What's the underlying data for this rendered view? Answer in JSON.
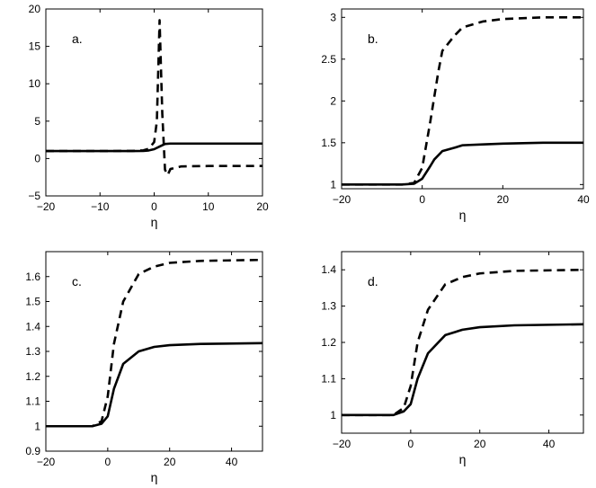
{
  "chart_data": [
    {
      "type": "line",
      "panel_label": "a.",
      "xlabel": "η",
      "xlim": [
        -20,
        20
      ],
      "ylim": [
        -5,
        20
      ],
      "xticks": [
        -20,
        -10,
        0,
        10,
        20
      ],
      "xtick_labels": [
        "−20",
        "−10",
        "0",
        "10",
        "20"
      ],
      "yticks": [
        -5,
        0,
        5,
        10,
        15,
        20
      ],
      "ytick_labels": [
        "−5",
        "0",
        "5",
        "10",
        "15",
        "20"
      ],
      "grid": false,
      "series": [
        {
          "style": "solid",
          "x": [
            -20,
            -10,
            -4,
            -2,
            -1,
            0,
            1,
            2,
            3,
            5,
            10,
            20
          ],
          "y": [
            1,
            1,
            1,
            1.02,
            1.08,
            1.25,
            1.6,
            1.95,
            2,
            2,
            2,
            2
          ]
        },
        {
          "style": "dashed",
          "x": [
            -20,
            -10,
            -4,
            -2,
            -1,
            0,
            0.5,
            1,
            1.5,
            2,
            2.5,
            3,
            5,
            10,
            20
          ],
          "y": [
            1,
            1,
            1.02,
            1.1,
            1.3,
            2.2,
            5,
            18.5,
            6,
            -1.5,
            -2.2,
            -1.4,
            -1.05,
            -1,
            -1
          ]
        }
      ]
    },
    {
      "type": "line",
      "panel_label": "b.",
      "xlabel": "η",
      "xlim": [
        -20,
        40
      ],
      "ylim": [
        0.95,
        3.1
      ],
      "xticks": [
        -20,
        0,
        20,
        40
      ],
      "xtick_labels": [
        "−20",
        "0",
        "20",
        "40"
      ],
      "yticks": [
        1,
        1.5,
        2,
        2.5,
        3
      ],
      "ytick_labels": [
        "1",
        "1.5",
        "2",
        "2.5",
        "3"
      ],
      "grid": false,
      "series": [
        {
          "style": "solid",
          "x": [
            -20,
            -5,
            -2,
            0,
            2,
            3,
            5,
            8,
            10,
            15,
            20,
            30,
            40
          ],
          "y": [
            1,
            1,
            1.01,
            1.07,
            1.22,
            1.3,
            1.4,
            1.44,
            1.47,
            1.48,
            1.49,
            1.5,
            1.5
          ]
        },
        {
          "style": "dashed",
          "x": [
            -20,
            -5,
            -2,
            0,
            2,
            4,
            5,
            8,
            10,
            15,
            20,
            30,
            40
          ],
          "y": [
            1,
            1,
            1.02,
            1.2,
            1.75,
            2.35,
            2.6,
            2.78,
            2.88,
            2.95,
            2.98,
            3,
            3
          ]
        }
      ]
    },
    {
      "type": "line",
      "panel_label": "c.",
      "xlabel": "η",
      "xlim": [
        -20,
        50
      ],
      "ylim": [
        0.9,
        1.7
      ],
      "xticks": [
        -20,
        0,
        20,
        40
      ],
      "xtick_labels": [
        "−20",
        "0",
        "20",
        "40"
      ],
      "yticks": [
        0.9,
        1,
        1.1,
        1.2,
        1.3,
        1.4,
        1.5,
        1.6
      ],
      "ytick_labels": [
        "0.9",
        "1",
        "1.1",
        "1.2",
        "1.3",
        "1.4",
        "1.5",
        "1.6"
      ],
      "grid": false,
      "series": [
        {
          "style": "solid",
          "x": [
            -20,
            -5,
            -2,
            0,
            2,
            5,
            10,
            15,
            20,
            30,
            50
          ],
          "y": [
            1,
            1,
            1.01,
            1.04,
            1.15,
            1.25,
            1.3,
            1.318,
            1.325,
            1.33,
            1.333
          ]
        },
        {
          "style": "dashed",
          "x": [
            -20,
            -5,
            -2,
            0,
            2,
            5,
            10,
            15,
            20,
            30,
            50
          ],
          "y": [
            1,
            1,
            1.02,
            1.12,
            1.33,
            1.5,
            1.61,
            1.64,
            1.655,
            1.663,
            1.667
          ]
        }
      ]
    },
    {
      "type": "line",
      "panel_label": "d.",
      "xlabel": "η",
      "xlim": [
        -20,
        50
      ],
      "ylim": [
        0.95,
        1.45
      ],
      "xticks": [
        -20,
        0,
        20,
        40
      ],
      "xtick_labels": [
        "−20",
        "0",
        "20",
        "40"
      ],
      "yticks": [
        1,
        1.1,
        1.2,
        1.3,
        1.4
      ],
      "ytick_labels": [
        "1",
        "1.1",
        "1.2",
        "1.3",
        "1.4"
      ],
      "grid": false,
      "series": [
        {
          "style": "solid",
          "x": [
            -20,
            -5,
            -2,
            0,
            2,
            5,
            10,
            15,
            20,
            30,
            50
          ],
          "y": [
            1,
            1,
            1.01,
            1.03,
            1.1,
            1.17,
            1.22,
            1.235,
            1.242,
            1.247,
            1.25
          ]
        },
        {
          "style": "dashed",
          "x": [
            -20,
            -5,
            -2,
            0,
            2,
            5,
            10,
            15,
            20,
            30,
            50
          ],
          "y": [
            1,
            1,
            1.02,
            1.08,
            1.2,
            1.29,
            1.36,
            1.38,
            1.39,
            1.397,
            1.4
          ]
        }
      ]
    }
  ]
}
